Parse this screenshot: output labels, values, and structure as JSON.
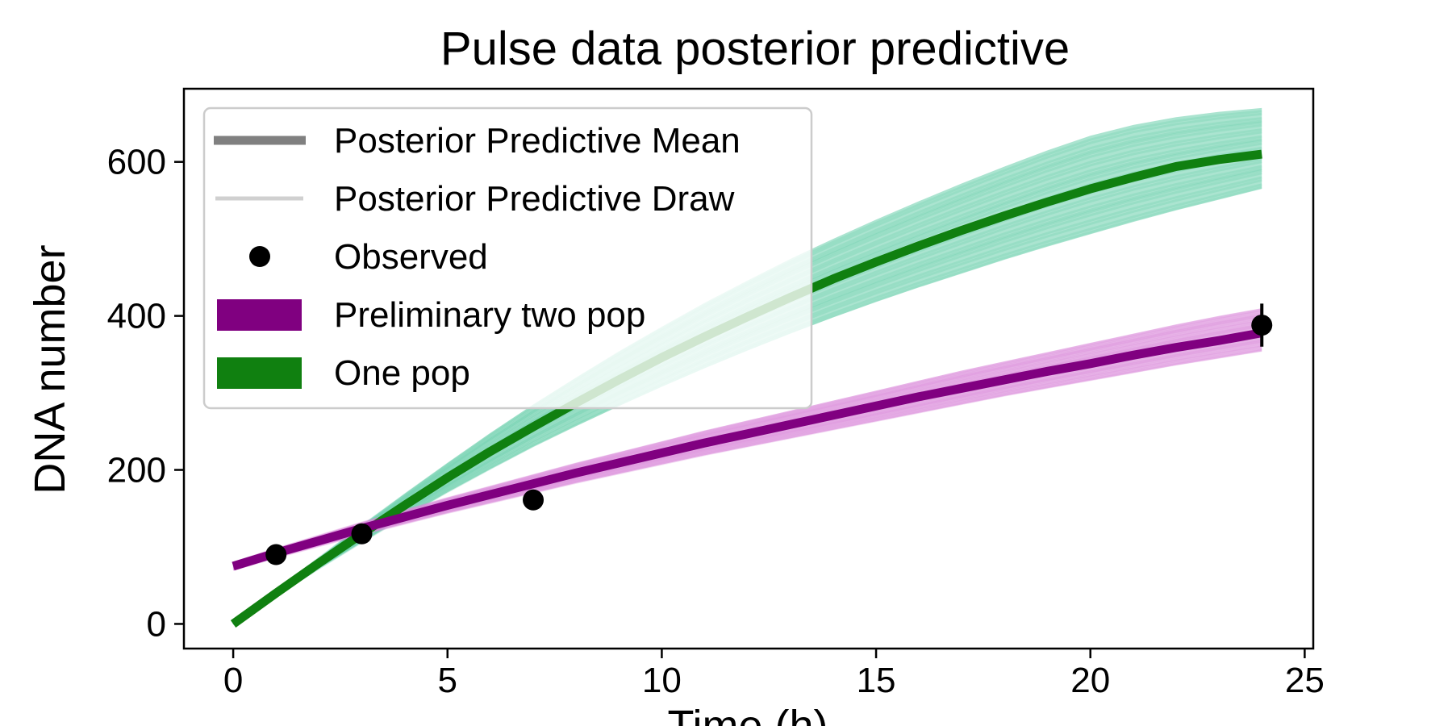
{
  "chart_data": {
    "type": "line",
    "title": "Pulse data posterior predictive",
    "xlabel": "Time (h)",
    "ylabel": "DNA number",
    "xlim": [
      -1.15,
      25.2
    ],
    "ylim": [
      -32,
      695
    ],
    "xticks": [
      0,
      5,
      10,
      15,
      20,
      25
    ],
    "yticks": [
      0,
      200,
      400,
      600
    ],
    "legend_position": "top-left",
    "legend": [
      {
        "label": "Posterior Predictive Mean",
        "kind": "line-thick",
        "color": "#808080"
      },
      {
        "label": "Posterior Predictive Draw",
        "kind": "line-thin",
        "color": "#d0d0d0"
      },
      {
        "label": "Observed",
        "kind": "marker",
        "color": "#000000"
      },
      {
        "label": "Preliminary two pop",
        "kind": "patch",
        "color": "#800080"
      },
      {
        "label": "One pop",
        "kind": "patch",
        "color": "#108010"
      }
    ],
    "series": [
      {
        "name": "One pop",
        "mean_color": "#108010",
        "band_color": "#66cdaa",
        "mean": {
          "x": [
            0,
            1,
            2,
            3,
            4,
            5,
            6,
            7,
            8,
            9,
            10,
            11,
            12,
            13,
            14,
            15,
            16,
            17,
            18,
            19,
            20,
            21,
            22,
            23,
            24
          ],
          "y": [
            0,
            40,
            79,
            117,
            154,
            190,
            224,
            256,
            287,
            317,
            346,
            373,
            399,
            424,
            448,
            470,
            491,
            511,
            530,
            548,
            565,
            580,
            594,
            603,
            610
          ]
        },
        "band_lower": [
          0,
          37,
          72,
          106,
          139,
          171,
          201,
          230,
          257,
          283,
          308,
          332,
          355,
          377,
          398,
          418,
          437,
          455,
          473,
          490,
          506,
          522,
          537,
          551,
          565
        ],
        "band_upper": [
          0,
          43,
          86,
          128,
          169,
          209,
          248,
          285,
          320,
          354,
          386,
          417,
          446,
          474,
          500,
          525,
          549,
          572,
          594,
          615,
          634,
          648,
          658,
          665,
          670
        ]
      },
      {
        "name": "Preliminary two pop",
        "mean_color": "#800080",
        "band_color": "#da8cda",
        "mean": {
          "x": [
            0,
            1,
            2,
            3,
            4,
            5,
            6,
            7,
            8,
            9,
            10,
            11,
            12,
            13,
            14,
            15,
            16,
            17,
            18,
            19,
            20,
            21,
            22,
            23,
            24
          ],
          "y": [
            75,
            92,
            108,
            124,
            139,
            154,
            168,
            182,
            196,
            209,
            222,
            235,
            247,
            259,
            271,
            283,
            295,
            306,
            317,
            328,
            338,
            349,
            359,
            368,
            378
          ]
        },
        "band_lower": [
          70,
          86,
          101,
          116,
          130,
          144,
          157,
          170,
          183,
          195,
          207,
          219,
          230,
          241,
          252,
          263,
          274,
          285,
          296,
          306,
          316,
          326,
          336,
          345,
          354
        ],
        "band_upper": [
          80,
          98,
          115,
          132,
          148,
          164,
          179,
          194,
          209,
          223,
          237,
          251,
          264,
          277,
          290,
          303,
          316,
          329,
          341,
          353,
          365,
          377,
          389,
          400,
          410
        ]
      }
    ],
    "observed": {
      "x": [
        1,
        3,
        7,
        24
      ],
      "y": [
        90,
        117,
        161,
        388
      ],
      "yerr": [
        0,
        0,
        0,
        28
      ]
    }
  }
}
